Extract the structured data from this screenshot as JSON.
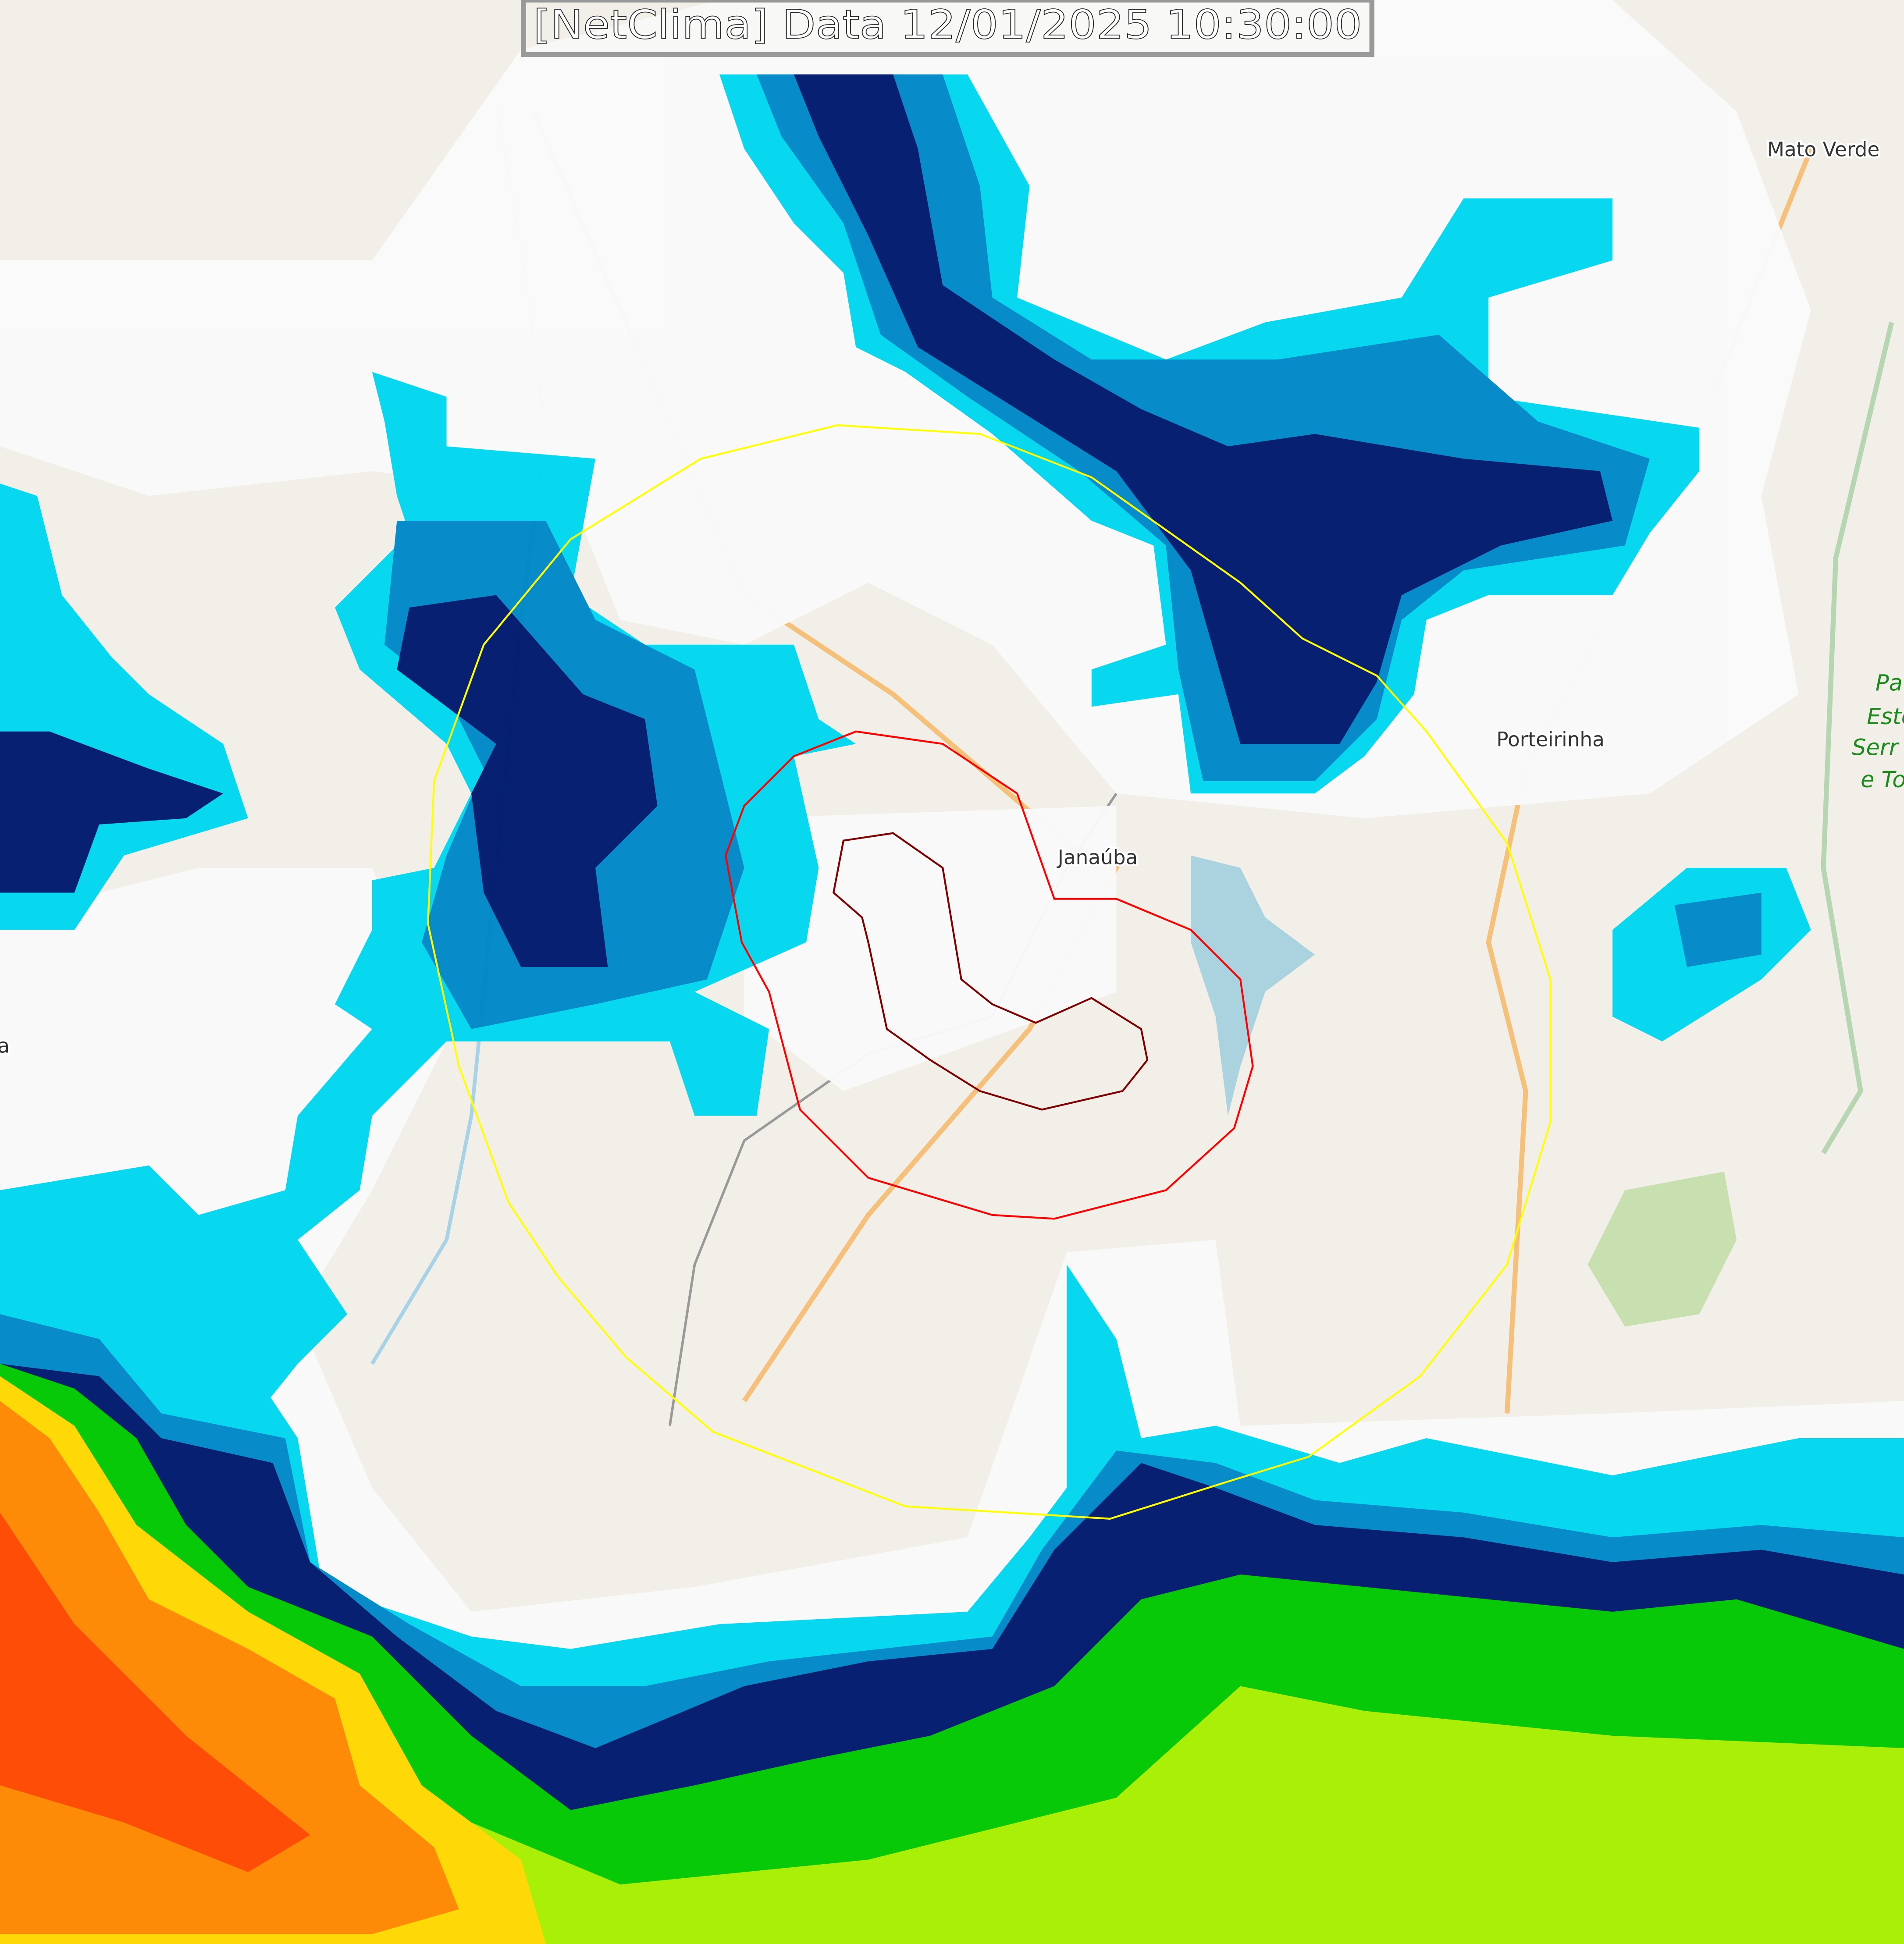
{
  "title": "[NetClima] Data 12/01/2025 10:30:00",
  "places": {
    "mato_verde": "Mato Verde",
    "porteirinha": "Porteirinha",
    "janauba": "Janaúba",
    "left_edge": "a"
  },
  "park_label": [
    "Pa",
    "Este",
    "Serr",
    "e To"
  ],
  "colors": {
    "background": "#f2efe9",
    "cloud": "#fafafa",
    "cyan": "#00d8f0",
    "blue": "#0088c8",
    "navy": "#001a6e",
    "green": "#00c800",
    "yellow_green": "#a8f000",
    "yellow": "#ffd800",
    "orange": "#ff8800",
    "red_orange": "#ff4800",
    "outer_ring": "#ffff00",
    "middle_ring": "#ff0000",
    "inner_ring": "#800000"
  }
}
